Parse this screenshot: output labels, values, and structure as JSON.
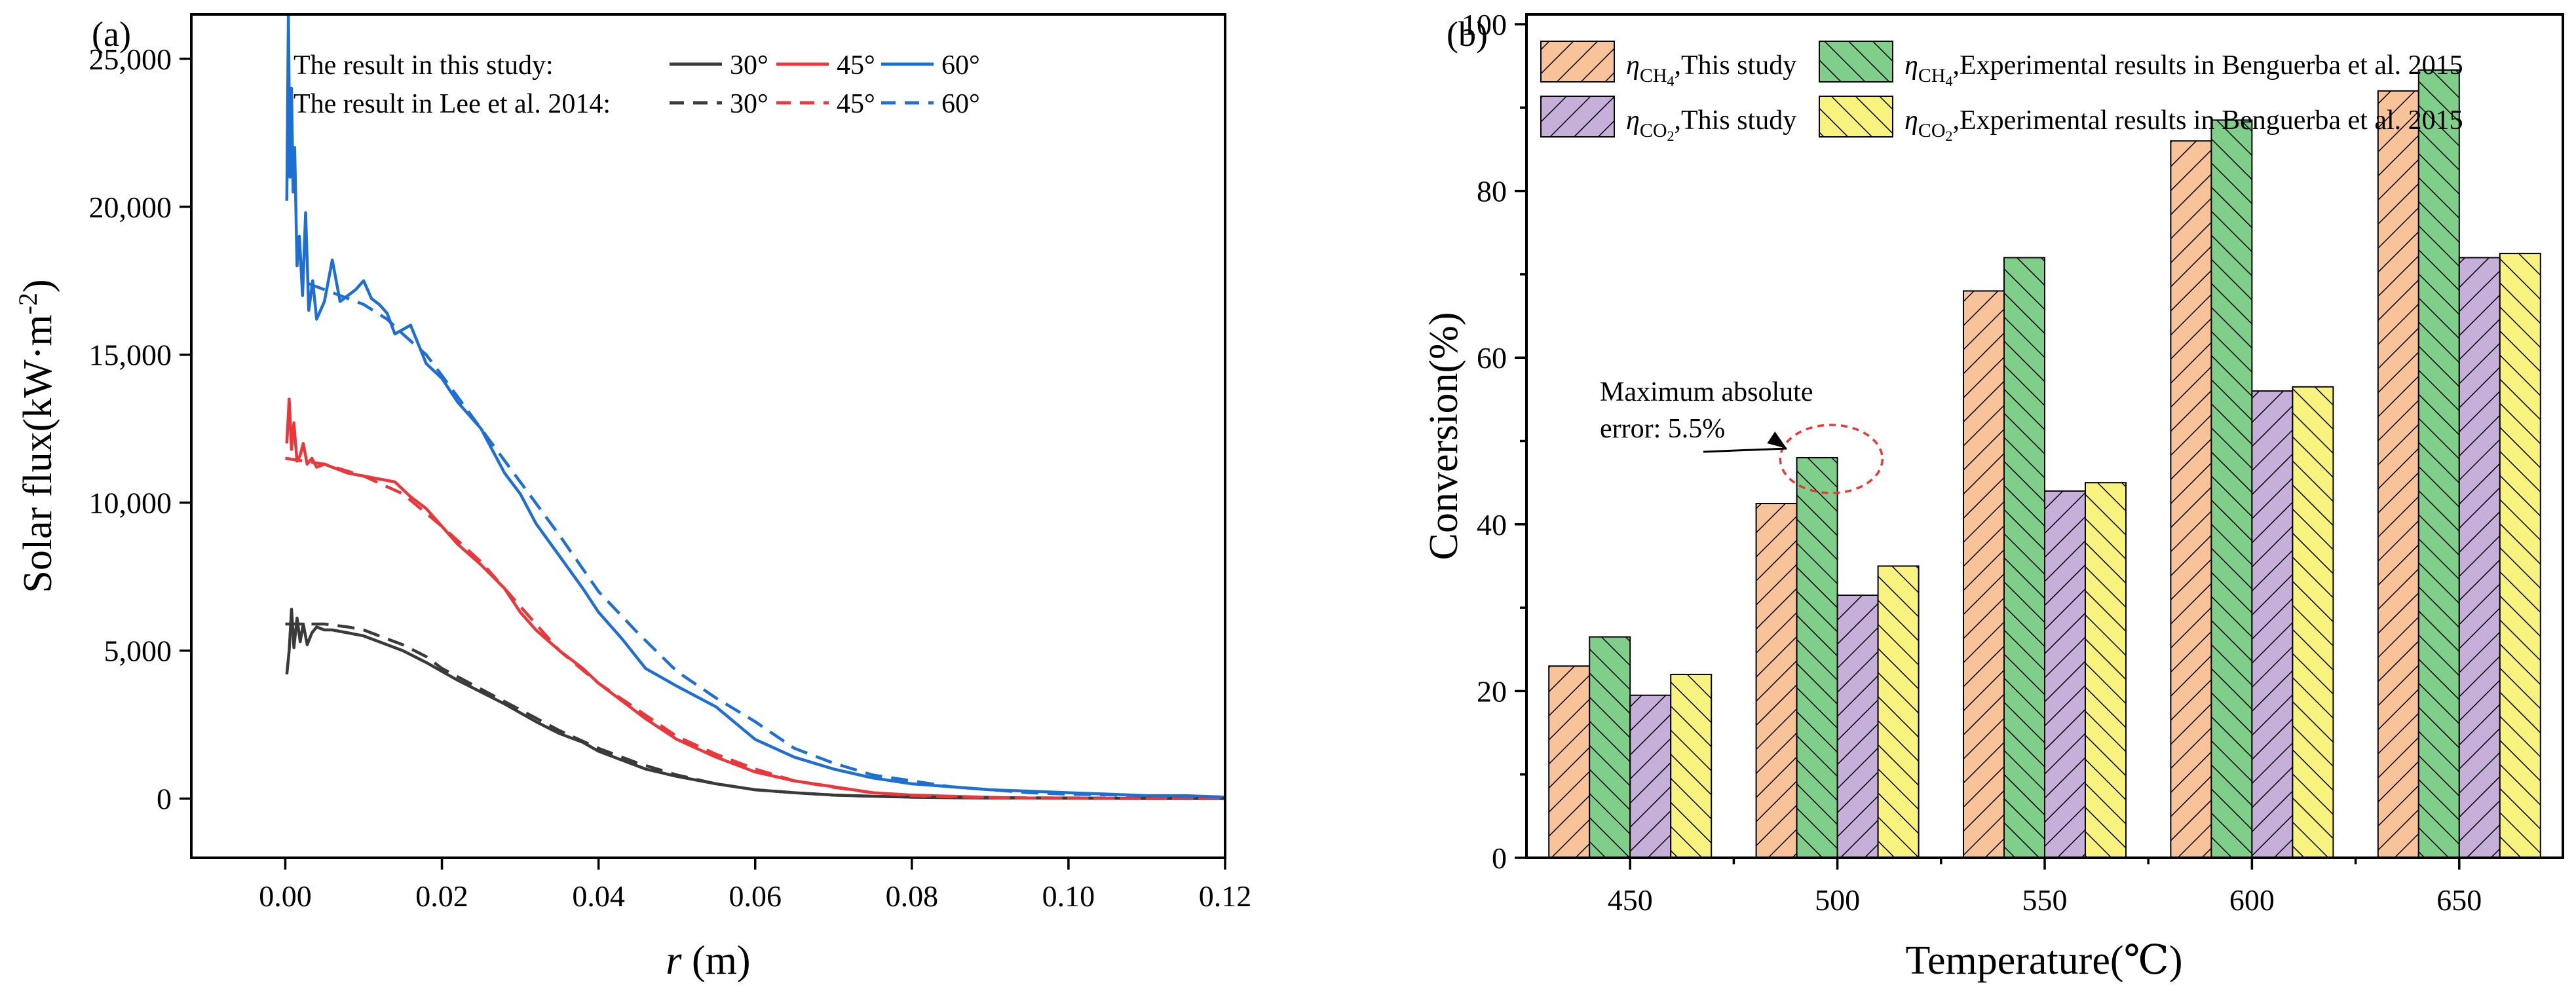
{
  "colors": {
    "deg30": "#3a3a3a",
    "deg45": "#e8383b",
    "deg60": "#1f6fd2",
    "ch4_this": "#f9c39a",
    "ch4_exp": "#7fcf8a",
    "co2_this": "#c6afd8",
    "co2_exp": "#f8f27e",
    "annotation": "#e8383b"
  },
  "chart_data": [
    {
      "panel_label": "(a)",
      "type": "line",
      "title": "",
      "xlabel_var": "r",
      "xlabel_unit": " (m)",
      "ylabel": "Solar flux(kW·m",
      "ylabel_sup": "-2",
      "ylabel_close": ")",
      "xlim": [
        -0.012,
        0.12
      ],
      "ylim": [
        -2000,
        26500
      ],
      "x_ticks": [
        0.0,
        0.02,
        0.04,
        0.06,
        0.08,
        0.1,
        0.12
      ],
      "x_tick_labels": [
        "0.00",
        "0.02",
        "0.04",
        "0.06",
        "0.08",
        "0.10",
        "0.12"
      ],
      "y_ticks": [
        0,
        5000,
        10000,
        15000,
        20000,
        25000
      ],
      "y_tick_labels": [
        "0",
        "5,000",
        "10,000",
        "15,000",
        "20,000",
        "25,000"
      ],
      "legend": {
        "row1_label": "The result in this study:",
        "row2_label": "The result in Lee et al. 2014:",
        "angle_labels": [
          "30°",
          "45°",
          "60°"
        ]
      },
      "series": [
        {
          "name": "30° this study",
          "angle": "30°",
          "style": "solid",
          "color_key": "deg30",
          "x": [
            0.0002,
            0.0005,
            0.0008,
            0.0011,
            0.0015,
            0.0019,
            0.0023,
            0.0028,
            0.0034,
            0.004,
            0.005,
            0.006,
            0.008,
            0.01,
            0.012,
            0.015,
            0.018,
            0.02,
            0.022,
            0.025,
            0.028,
            0.03,
            0.032,
            0.035,
            0.038,
            0.04,
            0.043,
            0.046,
            0.05,
            0.055,
            0.06,
            0.065,
            0.07,
            0.075,
            0.08,
            0.085,
            0.09,
            0.095,
            0.1,
            0.105,
            0.11,
            0.115,
            0.12
          ],
          "y": [
            4200,
            5000,
            6400,
            5100,
            6100,
            5300,
            5900,
            5200,
            5600,
            5800,
            5700,
            5700,
            5600,
            5500,
            5300,
            5000,
            4600,
            4300,
            4000,
            3600,
            3200,
            2900,
            2600,
            2200,
            1900,
            1600,
            1300,
            1000,
            750,
            500,
            300,
            200,
            120,
            80,
            50,
            30,
            20,
            20,
            20,
            10,
            10,
            10,
            10
          ]
        },
        {
          "name": "45° this study",
          "angle": "45°",
          "style": "solid",
          "color_key": "deg45",
          "x": [
            0.0002,
            0.0005,
            0.0008,
            0.0011,
            0.0015,
            0.0019,
            0.0023,
            0.0028,
            0.0034,
            0.004,
            0.005,
            0.006,
            0.008,
            0.01,
            0.012,
            0.014,
            0.016,
            0.018,
            0.02,
            0.022,
            0.025,
            0.028,
            0.03,
            0.032,
            0.035,
            0.038,
            0.04,
            0.043,
            0.046,
            0.05,
            0.055,
            0.06,
            0.065,
            0.07,
            0.075,
            0.08,
            0.085,
            0.09,
            0.095,
            0.1,
            0.105,
            0.11,
            0.115,
            0.12
          ],
          "y": [
            12000,
            13500,
            11800,
            12700,
            11400,
            11600,
            12000,
            11300,
            11500,
            11200,
            11300,
            11200,
            11000,
            10900,
            10800,
            10700,
            10200,
            9800,
            9200,
            8600,
            7900,
            7100,
            6300,
            5700,
            5000,
            4400,
            3900,
            3300,
            2700,
            2000,
            1400,
            900,
            600,
            400,
            200,
            120,
            80,
            40,
            20,
            10,
            10,
            0,
            0,
            0
          ]
        },
        {
          "name": "60° this study",
          "angle": "60°",
          "style": "solid",
          "color_key": "deg60",
          "x": [
            0.0002,
            0.0004,
            0.0006,
            0.0008,
            0.001,
            0.0012,
            0.0015,
            0.0018,
            0.0022,
            0.0026,
            0.003,
            0.0035,
            0.004,
            0.005,
            0.006,
            0.007,
            0.008,
            0.009,
            0.01,
            0.011,
            0.012,
            0.013,
            0.014,
            0.016,
            0.018,
            0.02,
            0.022,
            0.025,
            0.028,
            0.03,
            0.032,
            0.035,
            0.038,
            0.04,
            0.043,
            0.046,
            0.05,
            0.055,
            0.06,
            0.065,
            0.07,
            0.075,
            0.08,
            0.085,
            0.09,
            0.095,
            0.1,
            0.105,
            0.11,
            0.115,
            0.12
          ],
          "y": [
            20200,
            26500,
            21000,
            24000,
            20500,
            22000,
            18000,
            19000,
            17000,
            19800,
            16500,
            17500,
            16200,
            16800,
            18200,
            16800,
            17000,
            17200,
            17500,
            16900,
            16700,
            16400,
            15700,
            16000,
            14700,
            14200,
            13400,
            12500,
            11000,
            10300,
            9300,
            8200,
            7100,
            6300,
            5400,
            4400,
            3800,
            3100,
            2000,
            1400,
            1000,
            700,
            500,
            400,
            300,
            250,
            200,
            150,
            100,
            100,
            50
          ]
        },
        {
          "name": "30° Lee et al. 2014",
          "angle": "30°",
          "style": "dashed",
          "color_key": "deg30",
          "x": [
            0.0,
            0.005,
            0.008,
            0.01,
            0.012,
            0.015,
            0.018,
            0.02,
            0.025,
            0.03,
            0.035,
            0.04,
            0.045,
            0.05,
            0.055,
            0.06,
            0.065,
            0.07,
            0.075,
            0.08,
            0.085,
            0.09,
            0.1,
            0.11,
            0.12
          ],
          "y": [
            5900,
            5900,
            5800,
            5700,
            5500,
            5200,
            4800,
            4400,
            3700,
            3000,
            2300,
            1700,
            1200,
            800,
            500,
            300,
            200,
            120,
            80,
            50,
            40,
            30,
            20,
            10,
            10
          ]
        },
        {
          "name": "45° Lee et al. 2014",
          "angle": "45°",
          "style": "dashed",
          "color_key": "deg45",
          "x": [
            0.0,
            0.005,
            0.01,
            0.015,
            0.02,
            0.025,
            0.03,
            0.035,
            0.04,
            0.045,
            0.05,
            0.055,
            0.06,
            0.065,
            0.07,
            0.075,
            0.08,
            0.085,
            0.09,
            0.1,
            0.11,
            0.12
          ],
          "y": [
            11500,
            11300,
            10900,
            10300,
            9200,
            8000,
            6500,
            5000,
            3900,
            3000,
            2100,
            1500,
            1000,
            600,
            380,
            200,
            100,
            60,
            30,
            10,
            0,
            0
          ]
        },
        {
          "name": "60° Lee et al. 2014",
          "angle": "60°",
          "style": "dashed",
          "color_key": "deg60",
          "x": [
            0.003,
            0.005,
            0.008,
            0.01,
            0.013,
            0.015,
            0.018,
            0.02,
            0.025,
            0.03,
            0.035,
            0.04,
            0.045,
            0.05,
            0.055,
            0.06,
            0.065,
            0.07,
            0.075,
            0.08,
            0.085,
            0.09,
            0.095,
            0.1,
            0.11,
            0.12
          ],
          "y": [
            17400,
            17200,
            16900,
            16700,
            16200,
            15700,
            15000,
            14300,
            12500,
            10700,
            8900,
            7000,
            5600,
            4300,
            3400,
            2600,
            1700,
            1200,
            800,
            600,
            400,
            300,
            200,
            150,
            100,
            50
          ]
        }
      ]
    },
    {
      "panel_label": "(b)",
      "type": "bar",
      "title": "",
      "xlabel": "Temperature(℃)",
      "ylabel": "Conversion(%)",
      "ylim": [
        0,
        100
      ],
      "y_ticks": [
        0,
        20,
        40,
        60,
        80,
        100
      ],
      "y_tick_labels": [
        "0",
        "20",
        "40",
        "60",
        "80",
        "100"
      ],
      "categories": [
        "450",
        "500",
        "550",
        "600",
        "650"
      ],
      "series": [
        {
          "name": "ηCH4,This study",
          "eta": "η",
          "sub": "CH",
          "subsub": "4",
          "rest": ",This study",
          "color_key": "ch4_this",
          "values": [
            23,
            42.5,
            68,
            86,
            92
          ]
        },
        {
          "name": "ηCH4,Experimental results in Benguerba et al. 2015",
          "eta": "η",
          "sub": "CH",
          "subsub": "4",
          "rest": ",Experimental results in Benguerba et al. 2015",
          "color_key": "ch4_exp",
          "values": [
            26.5,
            48,
            72,
            88.5,
            94.5
          ]
        },
        {
          "name": "ηCO2,This study",
          "eta": "η",
          "sub": "CO",
          "subsub": "2",
          "rest": ",This study",
          "color_key": "co2_this",
          "values": [
            19.5,
            31.5,
            44,
            56,
            72
          ]
        },
        {
          "name": "ηCO2,Experimental results in Benguerba et al. 2015",
          "eta": "η",
          "sub": "CO",
          "subsub": "2",
          "rest": ",Experimental results in Benguerba et al. 2015",
          "color_key": "co2_exp",
          "values": [
            22,
            35,
            45,
            56.5,
            72.5
          ]
        }
      ],
      "annotation": {
        "line1": "Maximum absolute",
        "line2": "error: 5.5%",
        "category": "500"
      }
    }
  ]
}
